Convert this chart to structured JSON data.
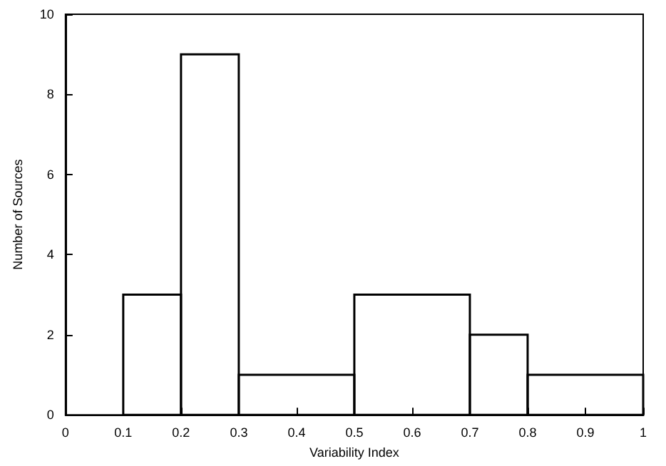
{
  "chart_data": {
    "type": "histogram",
    "xlabel": "Variability Index",
    "ylabel": "Number of Sources",
    "bins": [
      0.1,
      0.2,
      0.3,
      0.5,
      0.7,
      0.8,
      1.0
    ],
    "values": [
      3,
      9,
      1,
      3,
      2,
      1
    ],
    "color": "#000000",
    "xlim": [
      0,
      1
    ],
    "xticks": [
      0,
      0.1,
      0.2,
      0.3,
      0.4,
      0.5,
      0.6,
      0.7,
      0.8,
      0.9,
      1
    ],
    "ylim": [
      0,
      10
    ],
    "yticks": [
      0,
      2,
      4,
      6,
      8,
      10
    ],
    "grid": false
  }
}
